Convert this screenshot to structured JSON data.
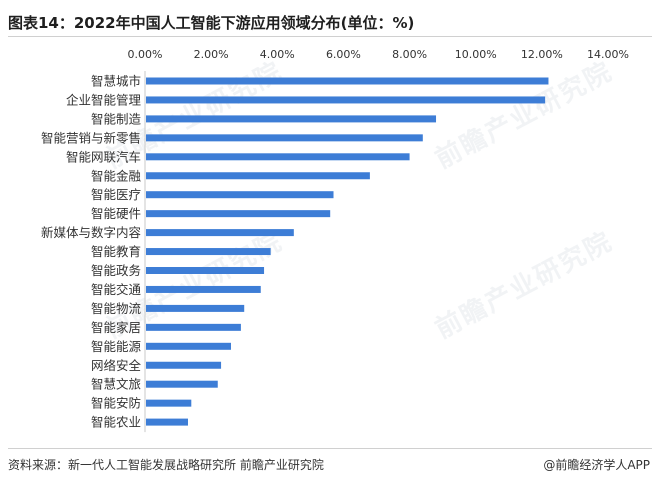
{
  "title": "图表14：2022年中国人工智能下游应用领域分布(单位：%)",
  "source_text": "资料来源：新一代人工智能发展战略研究所 前瞻产业研究院",
  "brand_text": "@前瞻经济学人APP",
  "watermark_text": "前瞻产业研究院",
  "colors": {
    "bar": "#3d7dd6",
    "text": "#333333",
    "axis": "#c8c8c8"
  },
  "chart_data": {
    "type": "bar",
    "orientation": "horizontal",
    "title": "图表14：2022年中国人工智能下游应用领域分布(单位：%)",
    "xlabel": "",
    "ylabel": "",
    "xlim": [
      0,
      14
    ],
    "x_ticks": [
      "0.00%",
      "2.00%",
      "4.00%",
      "6.00%",
      "8.00%",
      "10.00%",
      "12.00%",
      "14.00%"
    ],
    "x_axis_position": "top",
    "grid": false,
    "legend": "none",
    "categories": [
      "智慧城市",
      "企业智能管理",
      "智能制造",
      "智能营销与新零售",
      "智能网联汽车",
      "智能金融",
      "智能医疗",
      "智能硬件",
      "新媒体与数字内容",
      "智能教育",
      "智能政务",
      "智能交通",
      "智能物流",
      "智能家居",
      "智能能源",
      "网络安全",
      "智慧文旅",
      "智能安防",
      "智能农业"
    ],
    "values": [
      12.2,
      12.1,
      8.8,
      8.4,
      8.0,
      6.8,
      5.7,
      5.6,
      4.5,
      3.8,
      3.6,
      3.5,
      3.0,
      2.9,
      2.6,
      2.3,
      2.2,
      1.4,
      1.3
    ]
  }
}
